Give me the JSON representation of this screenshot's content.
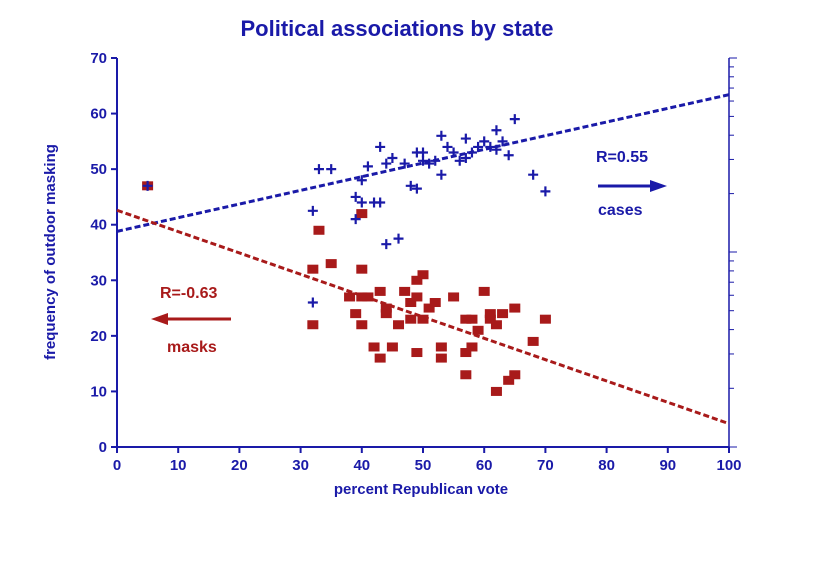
{
  "chart_data": {
    "type": "scatter",
    "title": "Political associations by state",
    "xlabel": "percent Republican vote",
    "ylabel": "frequency of outdoor masking",
    "xlim": [
      0,
      100
    ],
    "ylim": [
      0,
      70
    ],
    "xticks": [
      "0",
      "10",
      "20",
      "30",
      "40",
      "50",
      "60",
      "70",
      "80",
      "90",
      "100"
    ],
    "yticks": [
      "0",
      "10",
      "20",
      "30",
      "40",
      "50",
      "60",
      "70"
    ],
    "colors": {
      "cases": "#1a1aa8",
      "masks": "#a81a1a",
      "axis": "#1a1aa8"
    },
    "series": [
      {
        "name": "cases",
        "marker": "plus",
        "points": [
          [
            5,
            47
          ],
          [
            32,
            26
          ],
          [
            32,
            42.5
          ],
          [
            33,
            50
          ],
          [
            35,
            50
          ],
          [
            39,
            41
          ],
          [
            39,
            45
          ],
          [
            40,
            48
          ],
          [
            40,
            44
          ],
          [
            41,
            50.5
          ],
          [
            42,
            44
          ],
          [
            43,
            54
          ],
          [
            43,
            44
          ],
          [
            44,
            51
          ],
          [
            44,
            36.5
          ],
          [
            45,
            52
          ],
          [
            46,
            37.5
          ],
          [
            47,
            51
          ],
          [
            48,
            47
          ],
          [
            49,
            53
          ],
          [
            49,
            46.5
          ],
          [
            50,
            53
          ],
          [
            50,
            51.5
          ],
          [
            51,
            51
          ],
          [
            52,
            51.5
          ],
          [
            53,
            56
          ],
          [
            53,
            49
          ],
          [
            54,
            54
          ],
          [
            55,
            53
          ],
          [
            56,
            51.5
          ],
          [
            57,
            55.5
          ],
          [
            57,
            52
          ],
          [
            58,
            53
          ],
          [
            59,
            54
          ],
          [
            60,
            55
          ],
          [
            61,
            54
          ],
          [
            62,
            57
          ],
          [
            62,
            53.5
          ],
          [
            63,
            55
          ],
          [
            64,
            52.5
          ],
          [
            65,
            59
          ],
          [
            68,
            49
          ],
          [
            70,
            46
          ]
        ],
        "trend": [
          [
            0,
            38.8
          ],
          [
            100,
            63.4
          ]
        ],
        "trend_label": "R=0.55",
        "label": "cases"
      },
      {
        "name": "masks",
        "marker": "square",
        "points": [
          [
            5,
            47
          ],
          [
            32,
            32
          ],
          [
            32,
            22
          ],
          [
            33,
            39
          ],
          [
            35,
            33
          ],
          [
            38,
            27
          ],
          [
            39,
            24
          ],
          [
            40,
            42
          ],
          [
            40,
            27
          ],
          [
            40,
            32
          ],
          [
            40,
            22
          ],
          [
            41,
            27
          ],
          [
            42,
            18
          ],
          [
            43,
            28
          ],
          [
            43,
            16
          ],
          [
            44,
            25
          ],
          [
            44,
            24
          ],
          [
            45,
            18
          ],
          [
            46,
            22
          ],
          [
            47,
            28
          ],
          [
            48,
            26
          ],
          [
            48,
            23
          ],
          [
            49,
            30
          ],
          [
            49,
            27
          ],
          [
            49,
            17
          ],
          [
            50,
            31
          ],
          [
            50,
            23
          ],
          [
            51,
            25
          ],
          [
            52,
            26
          ],
          [
            53,
            18
          ],
          [
            53,
            16
          ],
          [
            55,
            27
          ],
          [
            57,
            23
          ],
          [
            57,
            17
          ],
          [
            57,
            13
          ],
          [
            58,
            18
          ],
          [
            58,
            23
          ],
          [
            59,
            21
          ],
          [
            60,
            28
          ],
          [
            61,
            24
          ],
          [
            61,
            23
          ],
          [
            62,
            22
          ],
          [
            62,
            10
          ],
          [
            63,
            24
          ],
          [
            64,
            12
          ],
          [
            65,
            25
          ],
          [
            65,
            13
          ],
          [
            68,
            19
          ],
          [
            70,
            23
          ]
        ],
        "trend": [
          [
            0,
            42.6
          ],
          [
            100,
            4.2
          ]
        ],
        "trend_label": "R=-0.63",
        "label": "masks"
      }
    ]
  }
}
